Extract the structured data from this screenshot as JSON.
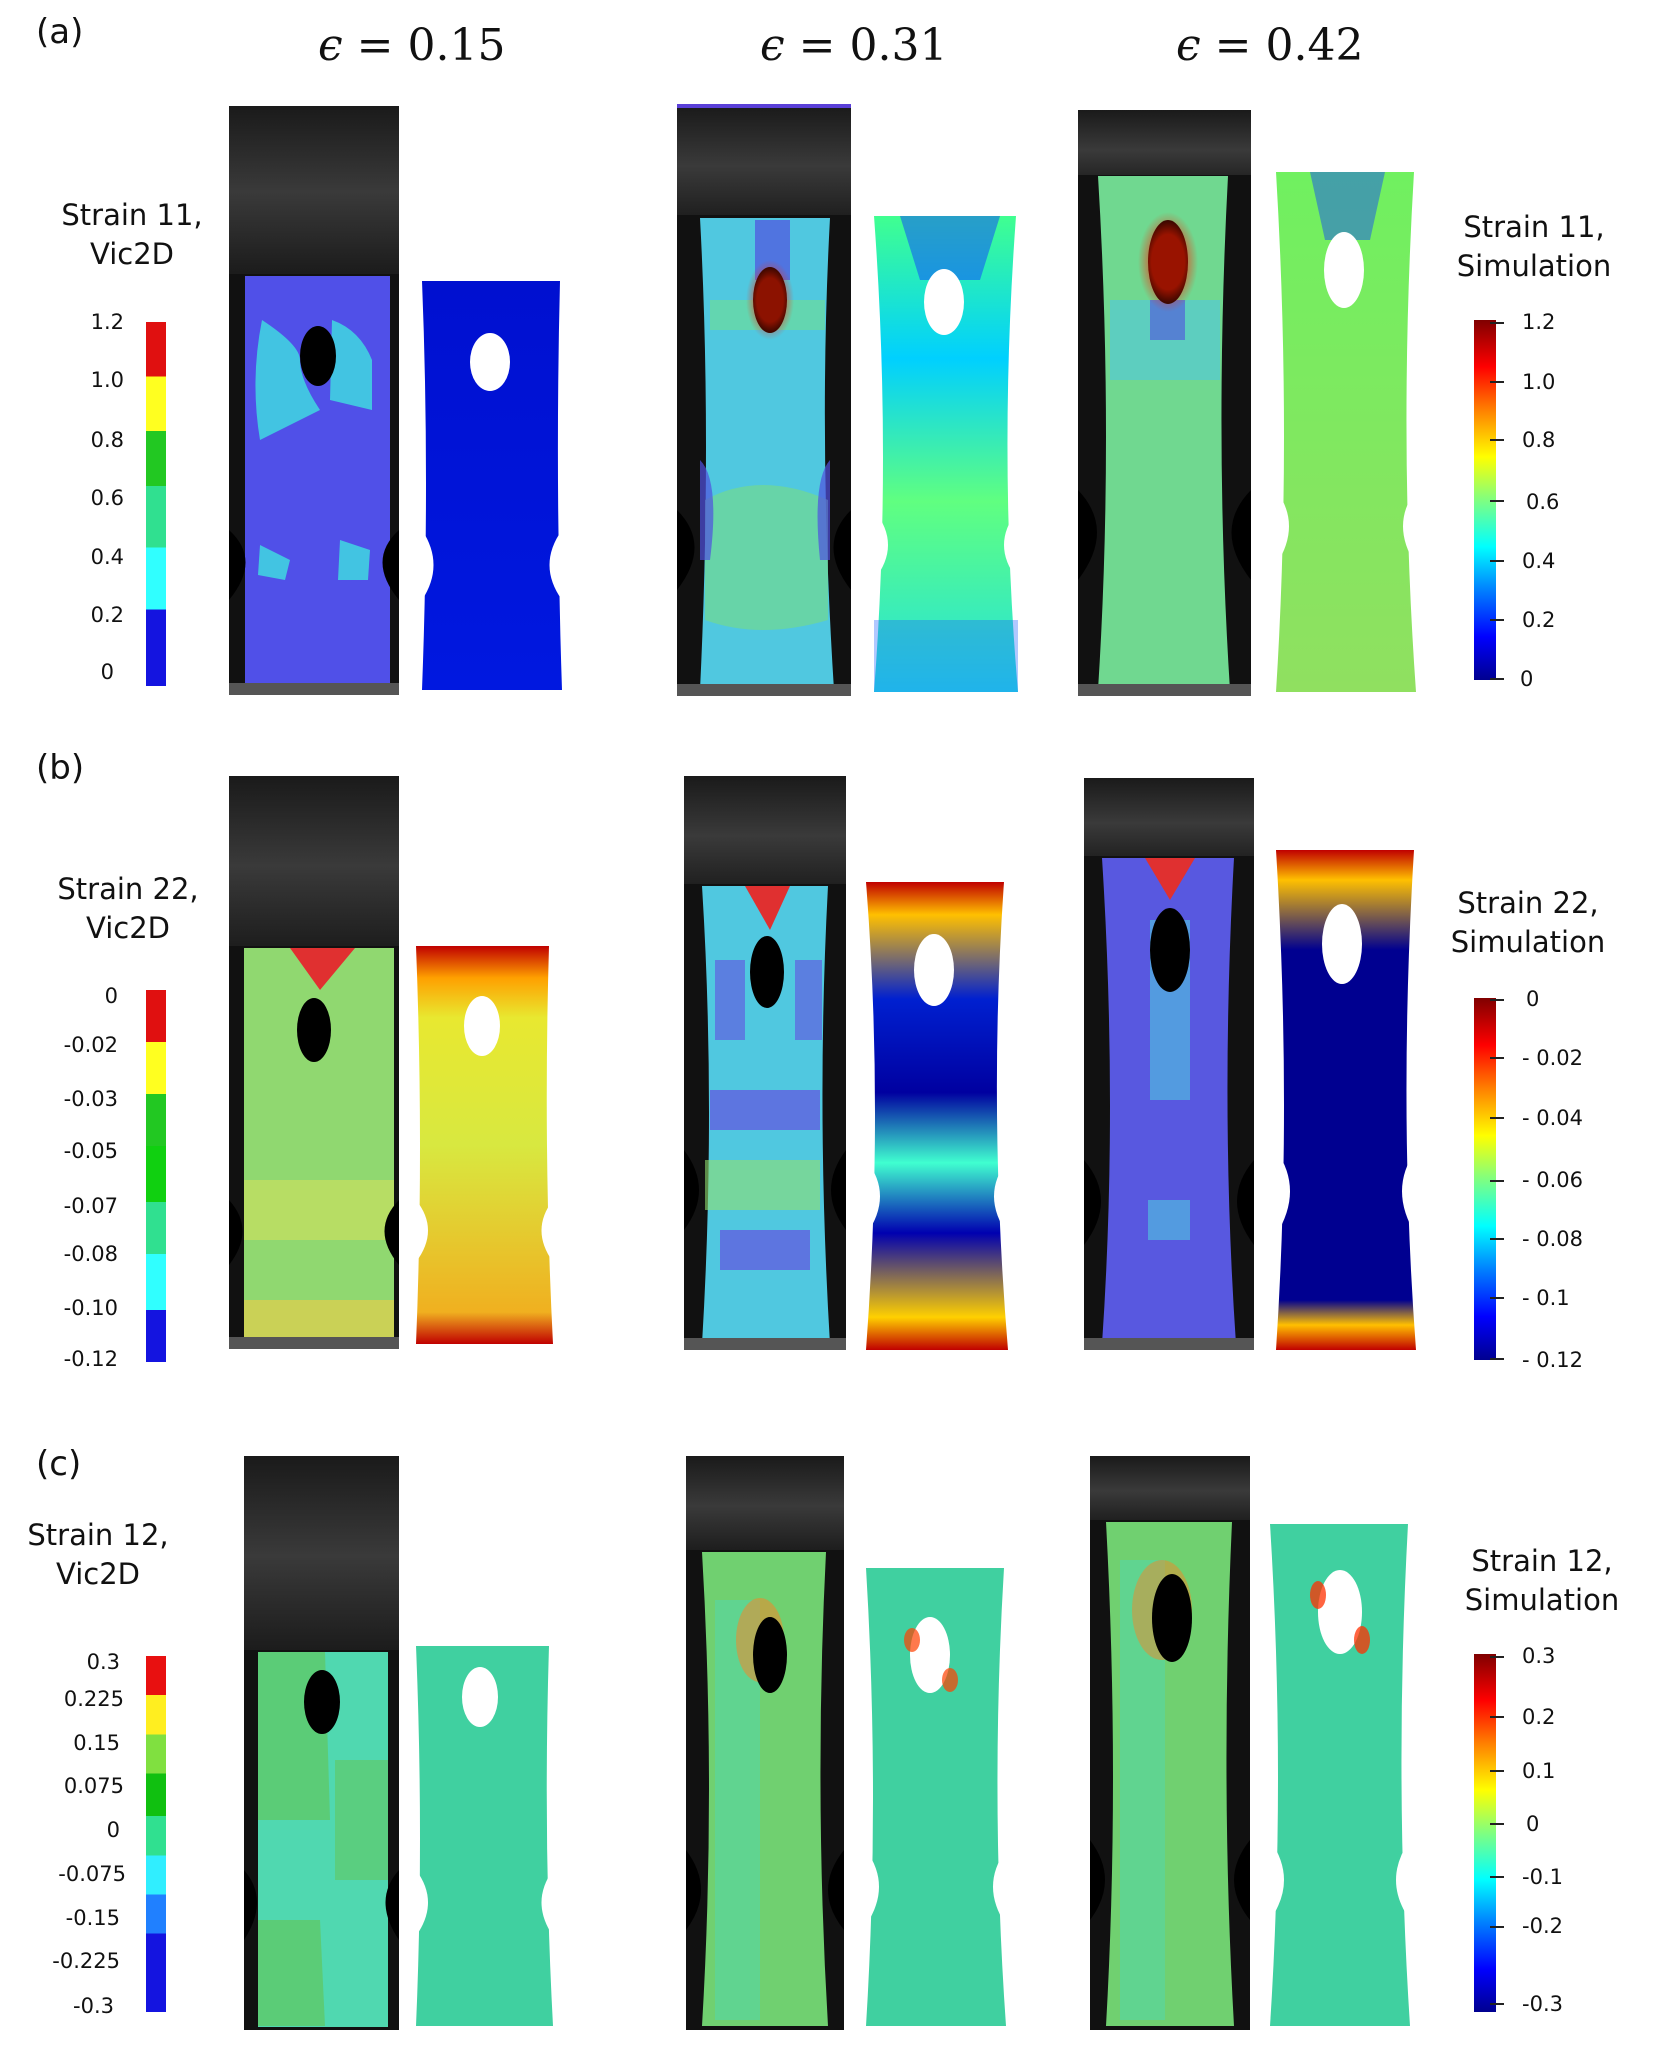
{
  "figure": {
    "panels": [
      {
        "label": "(a)",
        "left_title": [
          "Strain 11,",
          "Vic2D"
        ],
        "right_title": [
          "Strain 11,",
          "Simulation"
        ],
        "left_ticks": [
          "1.2",
          "1.0",
          "0.8",
          "0.6",
          "0.4",
          "0.2",
          "0"
        ],
        "right_ticks": [
          "1.2",
          "1.0",
          "0.8",
          "0.6",
          "0.4",
          "0.2",
          "0"
        ]
      },
      {
        "label": "(b)",
        "left_title": [
          "Strain 22,",
          "Vic2D"
        ],
        "right_title": [
          "Strain 22,",
          "Simulation"
        ],
        "left_ticks": [
          "0",
          "-0.02",
          "-0.03",
          "-0.05",
          "-0.07",
          "-0.08",
          "-0.10",
          "-0.12"
        ],
        "right_ticks": [
          "0",
          "- 0.02",
          "- 0.04",
          "- 0.06",
          "- 0.08",
          "- 0.1",
          "- 0.12"
        ]
      },
      {
        "label": "(c)",
        "left_title": [
          "Strain 12,",
          "Vic2D"
        ],
        "right_title": [
          "Strain 12,",
          "Simulation"
        ],
        "left_ticks": [
          "0.3",
          "0.225",
          "0.15",
          "0.075",
          "0",
          "-0.075",
          "-0.15",
          "-0.225",
          "-0.3"
        ],
        "right_ticks": [
          "0.3",
          "0.2",
          "0.1",
          "0",
          "-0.1",
          "-0.2",
          "-0.3"
        ]
      }
    ],
    "strain_levels": [
      {
        "symbol": "ϵ",
        "equals": " = ",
        "value": "0.15"
      },
      {
        "symbol": "ϵ",
        "equals": " = ",
        "value": "0.31"
      },
      {
        "symbol": "ϵ",
        "equals": " = ",
        "value": "0.42"
      }
    ]
  },
  "colors": {
    "jet": [
      "#00008f",
      "#0000ff",
      "#0080ff",
      "#00ffff",
      "#80ff80",
      "#ffff00",
      "#ff8000",
      "#ff0000",
      "#800000"
    ],
    "discrete_blue": "#1a1aff",
    "discrete_cyan": "#33ffff",
    "discrete_teal": "#2ee6a0",
    "discrete_green": "#33cc33",
    "discrete_yellow": "#ffff33",
    "discrete_red": "#ff3333",
    "grip_dark": "#2a2a2a"
  }
}
